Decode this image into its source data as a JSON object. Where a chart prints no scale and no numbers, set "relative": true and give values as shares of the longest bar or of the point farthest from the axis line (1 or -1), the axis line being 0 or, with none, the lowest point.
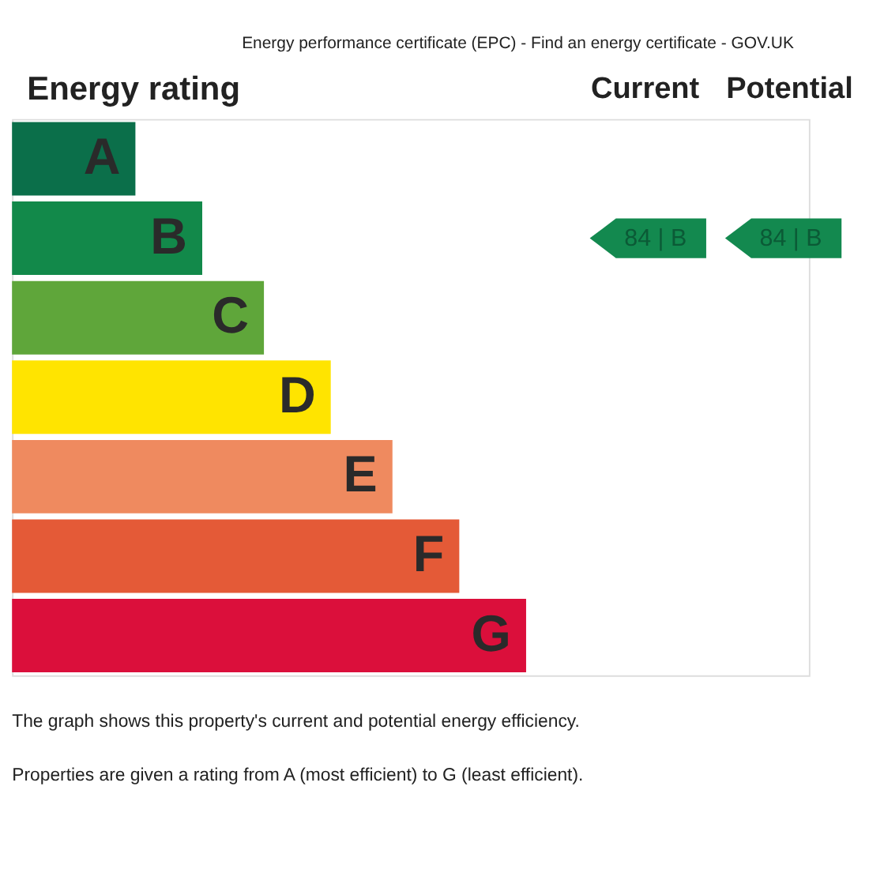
{
  "chart_data": {
    "type": "bar",
    "orientation": "horizontal",
    "relative": true,
    "title": "Energy rating",
    "categories": [
      "A",
      "B",
      "C",
      "D",
      "E",
      "F",
      "G"
    ],
    "values": [
      0.24,
      0.37,
      0.49,
      0.62,
      0.74,
      0.87,
      1
    ],
    "colors": [
      "#0b6f4a",
      "#12894a",
      "#5fa63a",
      "#ffe400",
      "#ef8a5f",
      "#e45a37",
      "#db0f3b"
    ],
    "annotations": [
      "Energy performance certificate (EPC) - Find an energy certificate - GOV.UK",
      "Current",
      "Potential",
      "84 | B",
      "84 | B",
      "The graph shows this property's current and potential energy efficiency.",
      "Properties are given a rating from A (most efficient) to G (least efficient)."
    ]
  }
}
